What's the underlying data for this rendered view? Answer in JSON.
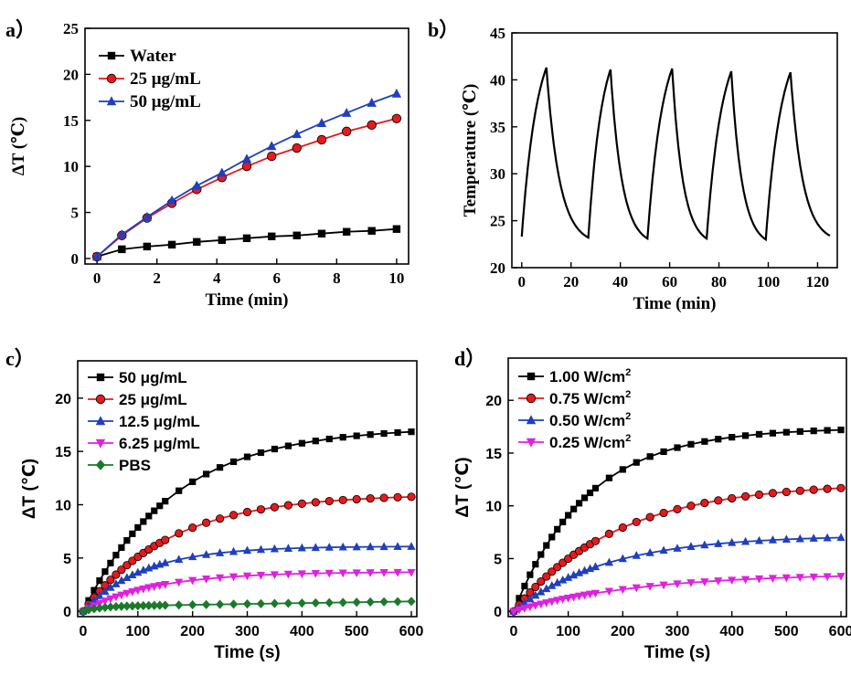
{
  "chart_data": [
    {
      "id": "a",
      "panel_label": "a）",
      "type": "line",
      "xlabel": "Time (min)",
      "ylabel": "ΔT (℃)",
      "xlim": [
        -0.4,
        10.4
      ],
      "ylim": [
        -0.6,
        25
      ],
      "xticks": [
        0,
        2,
        4,
        6,
        8,
        10
      ],
      "yticks": [
        0,
        5,
        10,
        15,
        20,
        25
      ],
      "legend": "top-left",
      "series": [
        {
          "name": "Water",
          "color": "#000000",
          "marker": "square",
          "x": [
            0,
            0.83,
            1.67,
            2.5,
            3.33,
            4.17,
            5,
            5.83,
            6.67,
            7.5,
            8.33,
            9.17,
            10
          ],
          "y": [
            0.2,
            1.0,
            1.3,
            1.5,
            1.8,
            2.0,
            2.2,
            2.4,
            2.5,
            2.7,
            2.9,
            3.0,
            3.2
          ]
        },
        {
          "name": "25 μg/mL",
          "color": "#e41a1c",
          "marker": "circle",
          "x": [
            0,
            0.83,
            1.67,
            2.5,
            3.33,
            4.17,
            5,
            5.83,
            6.67,
            7.5,
            8.33,
            9.17,
            10
          ],
          "y": [
            0.2,
            2.5,
            4.4,
            6.0,
            7.5,
            8.8,
            10.0,
            11.1,
            12.0,
            12.9,
            13.8,
            14.5,
            15.2
          ]
        },
        {
          "name": "50 μg/mL",
          "color": "#1f3fbf",
          "marker": "triangle",
          "x": [
            0,
            0.83,
            1.67,
            2.5,
            3.33,
            4.17,
            5,
            5.83,
            6.67,
            7.5,
            8.33,
            9.17,
            10
          ],
          "y": [
            0.2,
            2.6,
            4.5,
            6.3,
            7.9,
            9.3,
            10.8,
            12.2,
            13.5,
            14.7,
            15.8,
            16.9,
            17.9
          ]
        }
      ]
    },
    {
      "id": "b",
      "panel_label": "b）",
      "type": "line",
      "xlabel": "Time (min)",
      "ylabel": "Temperature (℃)",
      "xlim": [
        -4,
        128
      ],
      "ylim": [
        20,
        45
      ],
      "xticks": [
        0,
        20,
        40,
        60,
        80,
        100,
        120
      ],
      "yticks": [
        20,
        25,
        30,
        35,
        40,
        45
      ],
      "series": [
        {
          "color": "#000000",
          "marker": "none",
          "cycles": [
            {
              "start": 0,
              "peak_time": 10,
              "peak": 41.3,
              "start_temp": 23.3
            },
            {
              "start": 27,
              "peak_time": 36,
              "peak": 41.1,
              "start_temp": 23.2
            },
            {
              "start": 51,
              "peak_time": 61,
              "peak": 41.2,
              "start_temp": 23.1
            },
            {
              "start": 75,
              "peak_time": 85,
              "peak": 40.9,
              "start_temp": 23.1
            },
            {
              "start": 99,
              "peak_time": 109,
              "peak": 40.8,
              "start_temp": 23.0
            }
          ],
          "end_time": 125,
          "end_temp": 23.4
        }
      ]
    },
    {
      "id": "c",
      "panel_label": "c）",
      "type": "line",
      "xlabel": "Time (s)",
      "ylabel": "ΔT (℃)",
      "xlim": [
        -10,
        610
      ],
      "ylim": [
        -0.5,
        23.5
      ],
      "xticks": [
        0,
        100,
        200,
        300,
        400,
        500,
        600
      ],
      "yticks": [
        0,
        5,
        10,
        15,
        20
      ],
      "legend": "top-left",
      "series": [
        {
          "name": "50 μg/mL",
          "color": "#000000",
          "marker": "square",
          "plateau": 17.3,
          "tau": 165
        },
        {
          "name": "25 μg/mL",
          "color": "#e41a1c",
          "marker": "circle",
          "plateau": 11.0,
          "tau": 160
        },
        {
          "name": "12.5 μg/mL",
          "color": "#1f3fbf",
          "marker": "triangle",
          "plateau": 6.1,
          "tau": 110
        },
        {
          "name": "6.25 μg/mL",
          "color": "#e020e0",
          "marker": "triangle-down",
          "plateau": 3.7,
          "tau": 130
        },
        {
          "name": "PBS",
          "color": "#1a7a2a",
          "marker": "diamond",
          "plateau": 0.45,
          "tau": 30,
          "slope": 0.0008
        }
      ]
    },
    {
      "id": "d",
      "panel_label": "d）",
      "type": "line",
      "xlabel": "Time (s)",
      "ylabel": "ΔT (℃)",
      "xlim": [
        -10,
        610
      ],
      "ylim": [
        -0.5,
        24
      ],
      "xticks": [
        0,
        100,
        200,
        300,
        400,
        500,
        600
      ],
      "yticks": [
        0,
        5,
        10,
        15,
        20
      ],
      "legend": "top-left",
      "series": [
        {
          "name": "1.00 W/cm",
          "sup": "2",
          "color": "#000000",
          "marker": "square",
          "plateau": 17.4,
          "tau": 135
        },
        {
          "name": "0.75 W/cm",
          "sup": "2",
          "color": "#e41a1c",
          "marker": "circle",
          "plateau": 12.2,
          "tau": 190
        },
        {
          "name": "0.50 W/cm",
          "sup": "2",
          "color": "#1f3fbf",
          "marker": "triangle",
          "plateau": 7.2,
          "tau": 170
        },
        {
          "name": "0.25 W/cm",
          "sup": "2",
          "color": "#e020e0",
          "marker": "triangle-down",
          "plateau": 3.6,
          "tau": 230
        }
      ]
    }
  ]
}
